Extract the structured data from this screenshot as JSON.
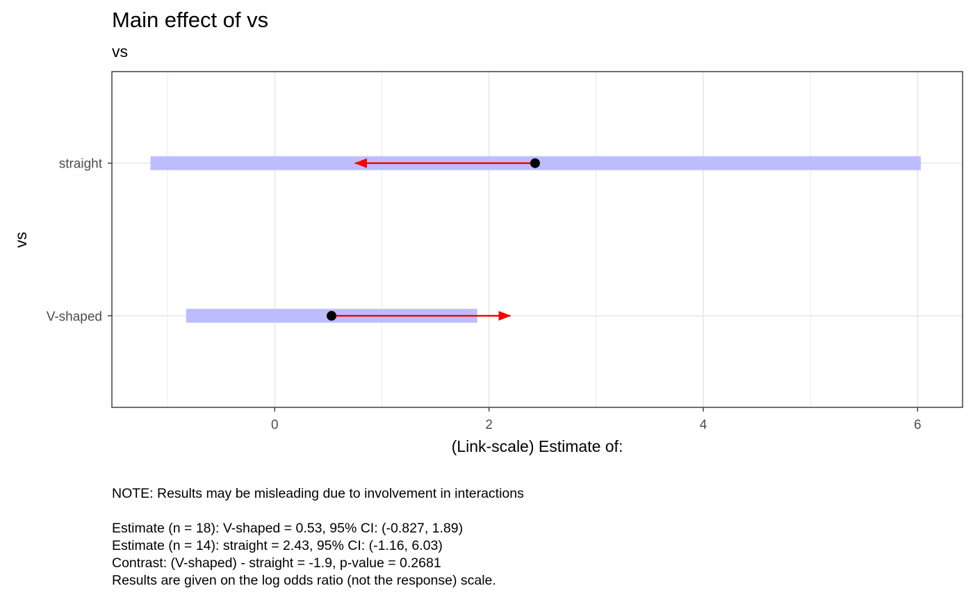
{
  "chart_data": {
    "type": "interval",
    "title": "Main effect of vs",
    "subtitle": "vs",
    "xlabel": "(Link-scale) Estimate of:",
    "ylabel": "vs",
    "xlim": [
      -1.52,
      6.42
    ],
    "xticks": [
      0,
      2,
      4,
      6
    ],
    "grid": true,
    "categories": [
      "V-shaped",
      "straight"
    ],
    "series": [
      {
        "values": [
          0.53,
          2.43
        ]
      }
    ],
    "estimates": [
      {
        "category": "V-shaped",
        "n": 18,
        "estimate": 0.53,
        "ci_low": -0.827,
        "ci_high": 1.89,
        "arrow_to": 2.2
      },
      {
        "category": "straight",
        "n": 14,
        "estimate": 2.43,
        "ci_low": -1.16,
        "ci_high": 6.03,
        "arrow_to": 0.75
      }
    ],
    "colors": {
      "ci_bar": "#bdbdfd",
      "arrow": "#ff0000",
      "point": "#000000",
      "grid": "#ebebeb",
      "panel_border": "#333333"
    }
  },
  "caption": {
    "note": "NOTE: Results may be misleading due to involvement in interactions",
    "lines": [
      "Estimate (n = 18): V-shaped = 0.53, 95% CI: (-0.827, 1.89)",
      "Estimate (n = 14): straight = 2.43, 95% CI: (-1.16, 6.03)",
      "Contrast: (V-shaped) - straight = -1.9, p-value = 0.2681",
      "Results are given on the log odds ratio (not the response) scale."
    ]
  }
}
